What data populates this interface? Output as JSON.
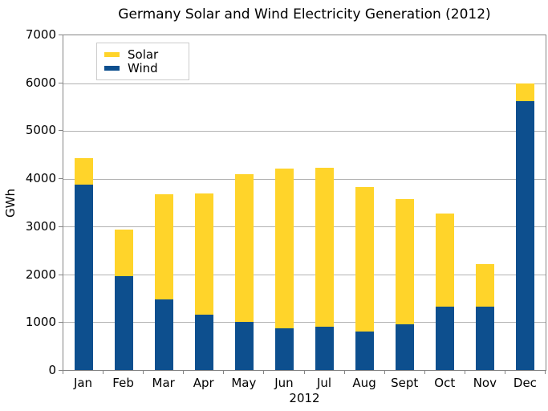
{
  "title": "Germany Solar and Wind Electricity Generation (2012)",
  "chart_data": {
    "type": "bar",
    "stacked": true,
    "title": "Germany Solar and Wind Electricity Generation (2012)",
    "xlabel": "2012",
    "ylabel": "GWh",
    "categories": [
      "Jan",
      "Feb",
      "Mar",
      "Apr",
      "May",
      "Jun",
      "Jul",
      "Aug",
      "Sept",
      "Oct",
      "Nov",
      "Dec"
    ],
    "series": [
      {
        "name": "Solar",
        "color": "#FFD42A",
        "values": [
          560,
          980,
          2210,
          2540,
          3100,
          3330,
          3330,
          3010,
          2620,
          1940,
          890,
          360
        ]
      },
      {
        "name": "Wind",
        "color": "#0D4F8E",
        "values": [
          3880,
          1960,
          1470,
          1160,
          1000,
          880,
          900,
          810,
          950,
          1330,
          1330,
          5630
        ]
      }
    ],
    "stack_order_bottom_to_top": [
      "Wind",
      "Solar"
    ],
    "ylim": [
      0,
      7000
    ],
    "y_ticks": [
      0,
      1000,
      2000,
      3000,
      4000,
      5000,
      6000,
      7000
    ],
    "grid": true,
    "legend_position": "top-left"
  },
  "colors": {
    "background": "#ffffff",
    "frame": "#848484",
    "grid": "#b3b3b3",
    "text": "#000000",
    "legend_border": "#cccccc",
    "solar": "#FFD42A",
    "wind": "#0D4F8E"
  }
}
